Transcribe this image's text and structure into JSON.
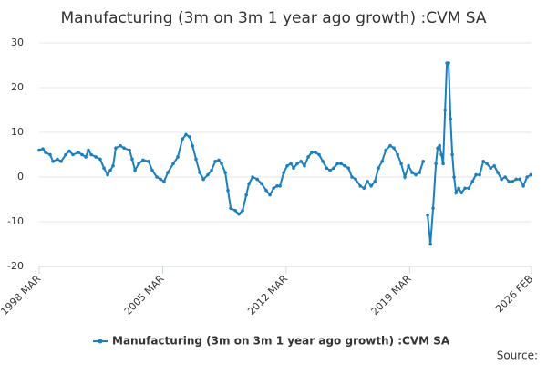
{
  "chart_data": {
    "type": "line",
    "title": "Manufacturing (3m on 3m 1 year ago growth) :CVM SA",
    "source": "Source:",
    "xlim": [
      1998.17,
      2026.08
    ],
    "xticks": [
      {
        "value": 1998.17,
        "label": "1998 MAR"
      },
      {
        "value": 2005.17,
        "label": "2005 MAR"
      },
      {
        "value": 2012.17,
        "label": "2012 MAR"
      },
      {
        "value": 2019.17,
        "label": "2019 MAR"
      },
      {
        "value": 2026.08,
        "label": "2026 FEB"
      }
    ],
    "ylim": [
      -20,
      30
    ],
    "yticks": [
      -20,
      -10,
      0,
      10,
      20,
      30
    ],
    "grid": true,
    "legend": "bottom",
    "series": [
      {
        "name": "Manufacturing (3m on 3m 1 year ago growth) :CVM SA",
        "color": "#1a7fbf",
        "x": [
          1998.17,
          1998.38,
          1998.53,
          1998.79,
          1998.95,
          1999.2,
          1999.41,
          1999.67,
          1999.88,
          2000.08,
          2000.39,
          2000.6,
          2000.81,
          2000.96,
          2001.12,
          2001.38,
          2001.63,
          2001.84,
          2002.05,
          2002.2,
          2002.36,
          2002.51,
          2002.77,
          2002.98,
          2003.29,
          2003.44,
          2003.6,
          2003.81,
          2004.06,
          2004.37,
          2004.58,
          2004.84,
          2005.05,
          2005.25,
          2005.46,
          2005.77,
          2006.03,
          2006.29,
          2006.49,
          2006.7,
          2006.86,
          2007.06,
          2007.27,
          2007.48,
          2007.73,
          2007.94,
          2008.15,
          2008.35,
          2008.51,
          2008.72,
          2008.87,
          2009.03,
          2009.29,
          2009.49,
          2009.7,
          2009.91,
          2010.06,
          2010.27,
          2010.53,
          2010.78,
          2011.04,
          2011.25,
          2011.46,
          2011.66,
          2011.82,
          2012.03,
          2012.23,
          2012.44,
          2012.59,
          2012.8,
          2013.01,
          2013.21,
          2013.42,
          2013.62,
          2013.83,
          2014.04,
          2014.25,
          2014.46,
          2014.66,
          2014.87,
          2015.08,
          2015.28,
          2015.49,
          2015.7,
          2015.9,
          2016.11,
          2016.37,
          2016.58,
          2016.78,
          2016.99,
          2017.2,
          2017.4,
          2017.61,
          2017.82,
          2018.07,
          2018.28,
          2018.49,
          2018.69,
          2018.9,
          2019.11,
          2019.31,
          2019.52,
          2019.73,
          2019.94,
          2020.09,
          2020.19,
          2020.35,
          2020.5,
          2020.66,
          2020.76,
          2020.87,
          2020.97,
          2021.07,
          2021.18,
          2021.28,
          2021.38,
          2021.49,
          2021.59,
          2021.69,
          2021.8,
          2021.95,
          2022.11,
          2022.31,
          2022.52,
          2022.73,
          2022.93,
          2023.14,
          2023.35,
          2023.55,
          2023.76,
          2023.97,
          2024.17,
          2024.38,
          2024.59,
          2024.8,
          2025.0,
          2025.21,
          2025.42,
          2025.62,
          2025.83,
          2026.04
        ],
        "values": [
          6,
          6.3,
          5.5,
          5,
          3.5,
          4,
          3.5,
          5,
          5.8,
          5,
          5.5,
          5,
          4.5,
          6,
          5,
          4.5,
          4,
          2,
          0.5,
          1.5,
          2.5,
          6.5,
          7,
          6.5,
          6,
          4,
          1.5,
          3,
          3.8,
          3.5,
          1.5,
          0,
          -0.5,
          -1,
          1,
          3,
          4.5,
          8.5,
          9.5,
          9,
          7,
          4,
          1,
          -0.5,
          0.5,
          1.5,
          3.5,
          3.8,
          3,
          1,
          -3,
          -7,
          -7.5,
          -8.3,
          -7.5,
          -4,
          -1.5,
          0,
          -0.5,
          -1.5,
          -3,
          -4,
          -2.5,
          -2,
          -2,
          1,
          2.5,
          3,
          2,
          3,
          3.5,
          2.5,
          4.5,
          5.5,
          5.5,
          5,
          3.5,
          2,
          1.5,
          2,
          3,
          3,
          2.5,
          2,
          0,
          -0.5,
          -2,
          -2.5,
          -1,
          -2,
          -1,
          2,
          3.5,
          6,
          7,
          6.5,
          5,
          3,
          0,
          2.5,
          1,
          0.5,
          1,
          3.5,
          null,
          -8.5,
          -15,
          -7,
          3,
          6.5,
          7,
          5,
          3,
          15,
          25.5,
          25.5,
          13,
          5,
          0,
          -3.5,
          -2.5,
          -3.5,
          -2.5,
          -2.5,
          -1,
          0.5,
          0.5,
          3.5,
          3,
          2,
          2.5,
          1,
          -0.5,
          0,
          -1,
          -1,
          -0.5,
          -0.5,
          -2,
          0,
          0.5
        ]
      }
    ]
  }
}
